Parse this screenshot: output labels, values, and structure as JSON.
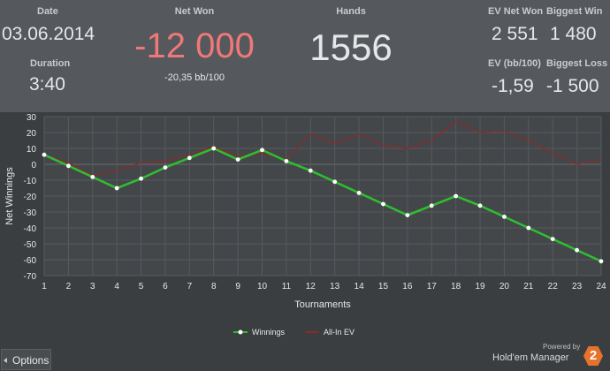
{
  "stats": {
    "date": {
      "label": "Date",
      "value": "03.06.2014"
    },
    "duration": {
      "label": "Duration",
      "value": "3:40"
    },
    "net_won": {
      "label": "Net Won",
      "value": "-12 000",
      "sub": "-20,35 bb/100",
      "color": "#f07878"
    },
    "hands": {
      "label": "Hands",
      "value": "1556"
    },
    "ev_net_won": {
      "label": "EV Net Won",
      "value": "2 551"
    },
    "biggest_win": {
      "label": "Biggest Win",
      "value": "1 480"
    },
    "ev_bb100": {
      "label": "EV (bb/100)",
      "value": "-1,59"
    },
    "biggest_loss": {
      "label": "Biggest Loss",
      "value": "-1 500"
    }
  },
  "chart_data": {
    "type": "line",
    "xlabel": "Tournaments",
    "ylabel": "Net Winnings",
    "x": [
      1,
      2,
      3,
      4,
      5,
      6,
      7,
      8,
      9,
      10,
      11,
      12,
      13,
      14,
      15,
      16,
      17,
      18,
      19,
      20,
      21,
      22,
      23,
      24
    ],
    "xlim": [
      1,
      24
    ],
    "ylim": [
      -70,
      30
    ],
    "yticks": [
      30,
      20,
      10,
      0,
      -10,
      -20,
      -30,
      -40,
      -50,
      -60,
      -70
    ],
    "grid": true,
    "legend_position": "bottom-center",
    "series": [
      {
        "name": "Winnings",
        "color": "#2fbf2f",
        "values": [
          6,
          -1,
          -8,
          -15,
          -9,
          -2,
          4,
          10,
          3,
          9,
          2,
          -4,
          -11,
          -18,
          -25,
          -32,
          -26,
          -20,
          -26,
          -33,
          -40,
          -47,
          -54,
          -61
        ]
      },
      {
        "name": "All-In EV",
        "color": "#8b2a2a",
        "values": [
          6,
          1,
          -7,
          -4,
          1,
          2,
          6,
          11,
          5,
          7,
          3,
          19,
          13,
          19,
          12,
          10,
          15,
          27,
          20,
          21,
          15,
          7,
          0,
          3
        ]
      }
    ]
  },
  "footer": {
    "options_label": "Options",
    "powered_by": "Powered by",
    "brand": "Hold'em Manager",
    "badge": "2"
  }
}
